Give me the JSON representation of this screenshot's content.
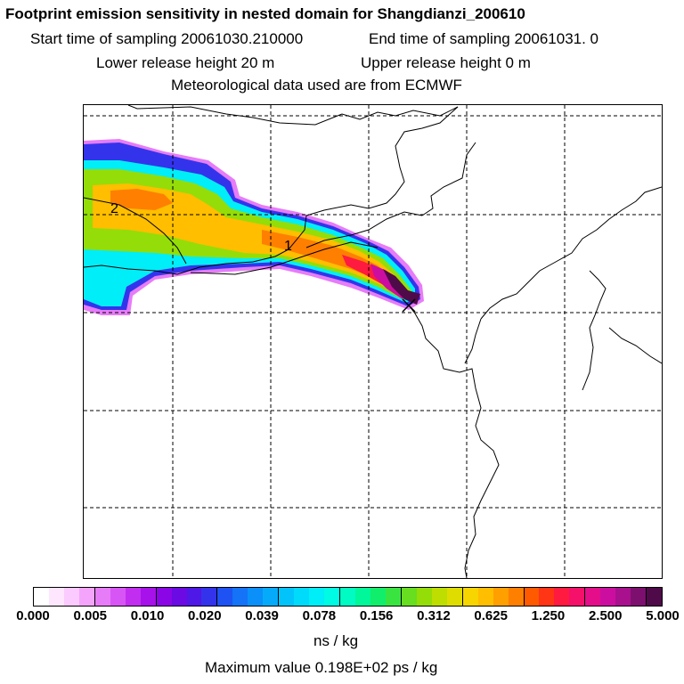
{
  "header": {
    "title": "Footprint emission sensitivity in nested domain for Shangdianzi_200610",
    "sampling_start": "Start time of sampling 20061030.210000",
    "sampling_end": "End time of sampling 20061031.     0",
    "lower_release": "Lower release height   20 m",
    "upper_release": "Upper release height    0 m",
    "met_data": "Meteorological data used are from ECMWF"
  },
  "map": {
    "contour_labels": [
      "2",
      "1"
    ]
  },
  "colorbar": {
    "colors": [
      "#ffffff",
      "#fde6fe",
      "#fbcafe",
      "#f5a4fc",
      "#e77cf8",
      "#d855f5",
      "#c22ef0",
      "#a712ea",
      "#8a06e6",
      "#6b0ae3",
      "#4e18e6",
      "#3433ec",
      "#1e52f2",
      "#1473f6",
      "#0a90f8",
      "#05abfa",
      "#02c4fb",
      "#00dafb",
      "#00eef7",
      "#00fbe4",
      "#00fcc3",
      "#00f79a",
      "#11ee6b",
      "#3ae440",
      "#67de1f",
      "#94dd08",
      "#bedd00",
      "#dfdd00",
      "#f7d500",
      "#ffbe00",
      "#ff9f00",
      "#ff7f00",
      "#ff5a00",
      "#ff3515",
      "#ff1a40",
      "#f5106a",
      "#e40e8a",
      "#cc0ea0",
      "#a8108e",
      "#7d0f6e",
      "#4f0a4a"
    ],
    "tick_labels": [
      "0.000",
      "0.005",
      "0.010",
      "0.020",
      "0.039",
      "0.078",
      "0.156",
      "0.312",
      "0.625",
      "1.250",
      "2.500",
      "5.000"
    ],
    "unit": "ns / kg",
    "max_value": "Maximum value  0.198E+02 ps / kg"
  }
}
